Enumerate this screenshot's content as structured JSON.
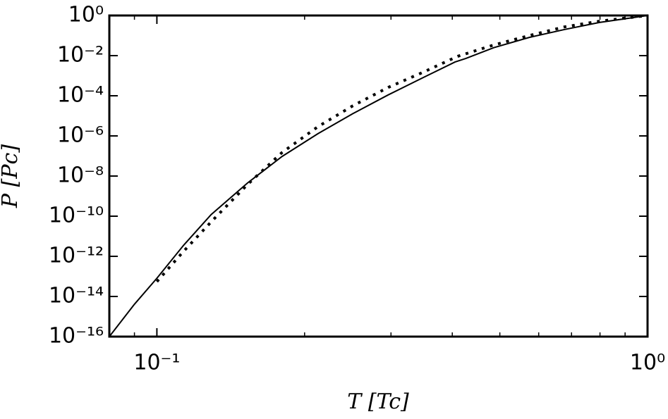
{
  "chart_data": {
    "type": "line",
    "xlabel": "T [Tc]",
    "ylabel": "P [Pc]",
    "xscale": "log",
    "yscale": "log",
    "xlim": [
      0.08,
      1
    ],
    "ylim": [
      1e-16,
      1
    ],
    "xticks": [
      {
        "value": 0.1,
        "label": "10⁻¹"
      },
      {
        "value": 1,
        "label": "10⁰"
      }
    ],
    "xminor_ticks": [
      0.09,
      0.2,
      0.3,
      0.4,
      0.5,
      0.6,
      0.7,
      0.8,
      0.9
    ],
    "yticks": [
      {
        "value": 1,
        "label": "10⁰"
      },
      {
        "value": 0.01,
        "label": "10⁻²"
      },
      {
        "value": 0.0001,
        "label": "10⁻⁴"
      },
      {
        "value": 1e-06,
        "label": "10⁻⁶"
      },
      {
        "value": 1e-08,
        "label": "10⁻⁸"
      },
      {
        "value": 1e-10,
        "label": "10⁻¹⁰"
      },
      {
        "value": 1e-12,
        "label": "10⁻¹²"
      },
      {
        "value": 1e-14,
        "label": "10⁻¹⁴"
      },
      {
        "value": 1e-16,
        "label": "10⁻¹⁶"
      }
    ],
    "series": [
      {
        "color": "#000000",
        "dash": "solid",
        "x": [
          0.08,
          0.09,
          0.1,
          0.1134,
          0.129,
          0.153,
          0.18,
          0.213,
          0.251,
          0.296,
          0.349,
          0.405,
          0.426,
          0.486,
          0.574,
          0.677,
          0.798,
          1
        ],
        "values": [
          1e-16,
          4.1e-15,
          8.1e-14,
          3.6e-12,
          1.2e-10,
          4.5e-09,
          9.5e-08,
          1.3e-06,
          1.3e-05,
          0.00011,
          0.00081,
          0.0048,
          0.0072,
          0.025,
          0.081,
          0.2,
          0.45,
          1
        ]
      },
      {
        "color": "#000000",
        "dash": "dotted",
        "x": [
          0.1,
          0.1134,
          0.129,
          0.153,
          0.18,
          0.213,
          0.251,
          0.296,
          0.349,
          0.41,
          0.486,
          0.574,
          0.677,
          0.798,
          1
        ],
        "values": [
          5.5e-14,
          1.8e-12,
          5.2e-11,
          3.8e-09,
          1.5e-07,
          2.9e-06,
          3.2e-05,
          0.00026,
          0.0015,
          0.0092,
          0.034,
          0.1,
          0.27,
          0.52,
          1
        ]
      }
    ]
  }
}
